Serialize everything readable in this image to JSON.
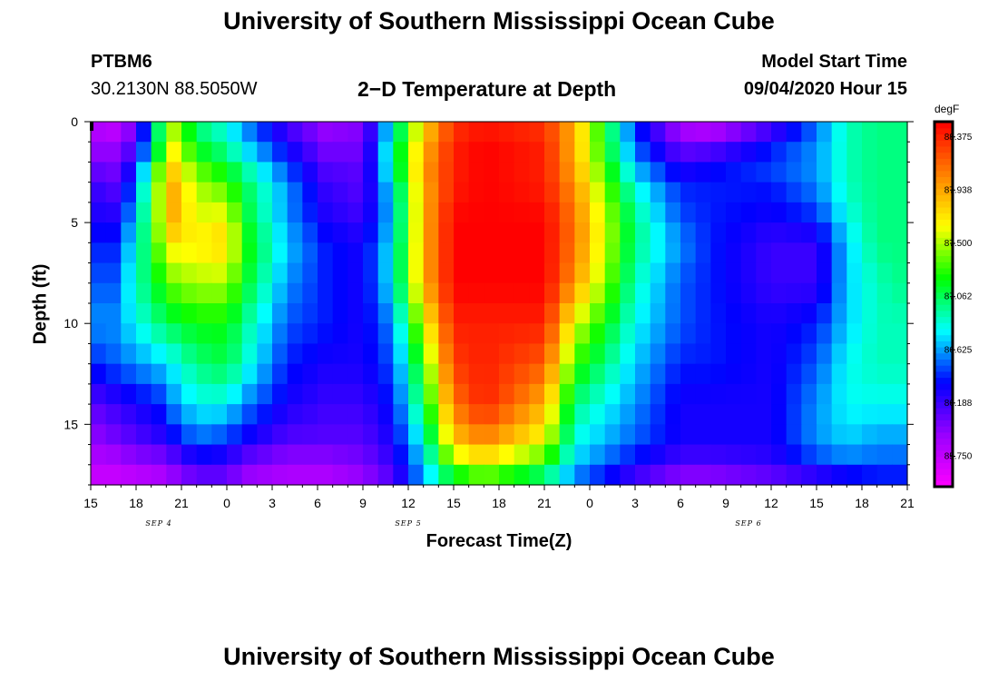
{
  "header": {
    "title": "University of Southern Mississippi Ocean Cube",
    "station_id": "PTBM6",
    "station_coords": "30.2130N 88.5050W",
    "subtitle": "2−D Temperature at Depth",
    "model_start_label": "Model Start Time",
    "model_start_value": "09/04/2020 Hour 15"
  },
  "footer": {
    "title": "University of Southern Mississippi Ocean Cube"
  },
  "chart_data": {
    "type": "heatmap",
    "title": "2−D Temperature at Depth",
    "xlabel": "Forecast Time(Z)",
    "ylabel": "Depth (ft)",
    "x_hours": [
      0,
      3,
      6,
      9,
      12,
      15,
      18,
      21,
      24,
      27,
      30,
      33,
      36,
      39,
      42,
      45,
      48,
      51,
      54
    ],
    "x_tick_labels": [
      "15",
      "18",
      "21",
      "0",
      "3",
      "6",
      "9",
      "12",
      "15",
      "18",
      "21",
      "0",
      "3",
      "6",
      "9",
      "12",
      "15",
      "18",
      "21"
    ],
    "date_labels": [
      {
        "label": "SEP 4",
        "hour": 4.5
      },
      {
        "label": "SEP 5",
        "hour": 21
      },
      {
        "label": "SEP 6",
        "hour": 43.5
      }
    ],
    "xlim": [
      0,
      54
    ],
    "ylim": [
      0,
      18
    ],
    "y_ticks": [
      0,
      5,
      10,
      15
    ],
    "y_reversed": true,
    "colorbar": {
      "unit": "degF",
      "min": 85.5,
      "max": 88.5,
      "ticks": [
        "88.375",
        "87.938",
        "87.500",
        "87.062",
        "86.625",
        "86.188",
        "85.750"
      ],
      "tick_values": [
        88.375,
        87.938,
        87.5,
        87.062,
        86.625,
        86.188,
        85.75
      ],
      "colormap": [
        "#ff00ff",
        "#9900ff",
        "#0000ff",
        "#00ffff",
        "#00ff00",
        "#ffff00",
        "#ff8000",
        "#ff0000"
      ]
    },
    "grid": {
      "cols": 54,
      "rows": 18,
      "x_nodes": [
        0,
        1.5,
        3,
        4.5,
        5.5,
        7,
        9,
        10,
        13,
        15.5,
        18,
        20,
        22,
        24,
        26,
        30,
        32,
        36,
        39,
        41,
        45,
        48,
        50,
        52,
        54
      ],
      "y_nodes": [
        0,
        1,
        2,
        3,
        5,
        6,
        8,
        10,
        12,
        14,
        16,
        17,
        18
      ],
      "values": [
        [
          85.8,
          85.7,
          86.0,
          87.1,
          87.4,
          87.0,
          86.8,
          86.6,
          86.1,
          85.9,
          86.0,
          86.8,
          87.8,
          88.3,
          88.4,
          88.3,
          87.9,
          86.4,
          85.8,
          85.7,
          86.1,
          86.5,
          86.9,
          87.0,
          87.0
        ],
        [
          85.9,
          85.9,
          86.1,
          87.0,
          87.6,
          87.1,
          86.9,
          86.7,
          86.3,
          86.0,
          86.0,
          86.9,
          87.8,
          88.4,
          88.5,
          88.4,
          87.9,
          86.5,
          86.0,
          86.0,
          86.3,
          86.6,
          86.9,
          87.0,
          87.0
        ],
        [
          86.0,
          86.0,
          86.3,
          87.3,
          87.7,
          87.3,
          87.1,
          86.9,
          86.4,
          86.1,
          86.1,
          87.0,
          88.0,
          88.4,
          88.5,
          88.4,
          87.9,
          86.6,
          86.2,
          86.3,
          86.5,
          86.6,
          86.9,
          87.0,
          87.0
        ],
        [
          86.2,
          86.1,
          86.5,
          87.5,
          87.9,
          87.5,
          87.3,
          87.1,
          86.6,
          86.2,
          86.1,
          86.8,
          87.9,
          88.4,
          88.5,
          88.4,
          88.0,
          86.8,
          86.4,
          86.4,
          86.4,
          86.6,
          86.9,
          87.0,
          87.0
        ],
        [
          86.3,
          86.3,
          86.7,
          87.5,
          87.9,
          87.6,
          87.7,
          87.2,
          86.6,
          86.3,
          86.2,
          86.7,
          87.9,
          88.5,
          88.5,
          88.5,
          88.1,
          87.0,
          86.5,
          86.4,
          86.3,
          86.4,
          86.8,
          87.0,
          87.0
        ],
        [
          86.4,
          86.4,
          86.8,
          87.4,
          87.7,
          87.7,
          87.8,
          87.3,
          86.7,
          86.4,
          86.3,
          86.8,
          87.9,
          88.5,
          88.5,
          88.5,
          88.1,
          87.0,
          86.6,
          86.4,
          86.2,
          86.2,
          86.7,
          87.0,
          87.0
        ],
        [
          86.5,
          86.5,
          86.9,
          87.2,
          87.4,
          87.5,
          87.5,
          87.2,
          86.6,
          86.4,
          86.3,
          86.8,
          87.9,
          88.5,
          88.5,
          88.5,
          88.0,
          86.9,
          86.5,
          86.4,
          86.2,
          86.2,
          86.7,
          86.9,
          87.0
        ],
        [
          86.6,
          86.6,
          86.8,
          87.0,
          87.1,
          87.2,
          87.2,
          87.0,
          86.5,
          86.4,
          86.3,
          86.6,
          87.6,
          88.4,
          88.4,
          88.4,
          87.6,
          86.8,
          86.5,
          86.4,
          86.3,
          86.4,
          86.7,
          86.9,
          86.9
        ],
        [
          86.4,
          86.5,
          86.6,
          86.7,
          86.8,
          87.0,
          87.1,
          86.9,
          86.4,
          86.3,
          86.3,
          86.5,
          87.3,
          88.3,
          88.4,
          88.2,
          87.3,
          86.7,
          86.4,
          86.4,
          86.3,
          86.5,
          86.8,
          86.9,
          86.9
        ],
        [
          86.1,
          86.2,
          86.3,
          86.4,
          86.6,
          86.8,
          86.8,
          86.6,
          86.3,
          86.2,
          86.2,
          86.4,
          87.1,
          88.1,
          88.4,
          87.9,
          87.0,
          86.6,
          86.3,
          86.3,
          86.3,
          86.6,
          86.8,
          86.8,
          86.8
        ],
        [
          85.9,
          86.0,
          86.1,
          86.2,
          86.3,
          86.5,
          86.4,
          86.3,
          86.1,
          86.1,
          86.1,
          86.3,
          86.8,
          87.8,
          88.0,
          87.6,
          86.8,
          86.5,
          86.3,
          86.3,
          86.3,
          86.6,
          86.7,
          86.6,
          86.6
        ],
        [
          85.8,
          85.8,
          85.9,
          85.9,
          86.0,
          86.2,
          86.2,
          86.0,
          85.9,
          85.9,
          86.0,
          86.2,
          86.7,
          87.4,
          87.6,
          87.2,
          86.7,
          86.3,
          86.1,
          86.1,
          86.2,
          86.4,
          86.5,
          86.5,
          86.5
        ],
        [
          85.7,
          85.7,
          85.7,
          85.8,
          85.9,
          86.0,
          86.0,
          85.9,
          85.8,
          85.8,
          85.9,
          86.1,
          86.6,
          87.0,
          87.2,
          86.9,
          86.5,
          86.1,
          85.9,
          85.9,
          86.0,
          86.1,
          86.2,
          86.3,
          86.3
        ]
      ]
    }
  }
}
